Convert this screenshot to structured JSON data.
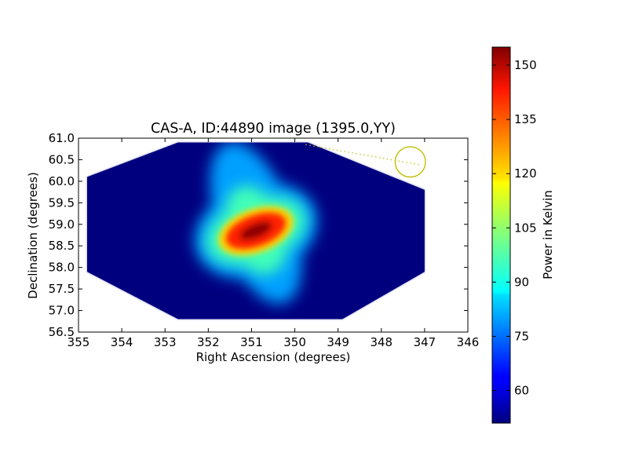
{
  "chart_data": {
    "type": "heatmap",
    "title": "CAS-A, ID:44890 image (1395.0,YY)",
    "xlabel": "Right Ascension (degrees)",
    "ylabel": "Declination (degrees)",
    "xlim": [
      355,
      346
    ],
    "ylim": [
      56.5,
      61.0
    ],
    "xticks": [
      355,
      354,
      353,
      352,
      351,
      350,
      349,
      348,
      347,
      346
    ],
    "xtick_labels": [
      "355",
      "354",
      "353",
      "352",
      "351",
      "350",
      "349",
      "348",
      "347",
      "346"
    ],
    "yticks": [
      56.5,
      57.0,
      57.5,
      58.0,
      58.5,
      59.0,
      59.5,
      60.0,
      60.5,
      61.0
    ],
    "ytick_labels": [
      "56.5",
      "57.0",
      "57.5",
      "58.0",
      "58.5",
      "59.0",
      "59.5",
      "60.0",
      "60.5",
      "61.0"
    ],
    "colormap": "jet",
    "colorbar": {
      "label": "Power in Kelvin",
      "range": [
        51,
        155
      ],
      "ticks": [
        60,
        75,
        90,
        105,
        120,
        135,
        150
      ],
      "tick_labels": [
        "60",
        "75",
        "90",
        "105",
        "120",
        "135",
        "150"
      ]
    },
    "background_value": 51,
    "peak": {
      "ra": 350.9,
      "dec": 58.85,
      "value": 155
    },
    "footprint": [
      [
        354.8,
        60.1
      ],
      [
        352.7,
        60.9
      ],
      [
        349.7,
        60.9
      ],
      [
        347.0,
        59.8
      ],
      [
        347.0,
        57.9
      ],
      [
        348.9,
        56.8
      ],
      [
        352.7,
        56.8
      ],
      [
        354.8,
        57.9
      ]
    ],
    "annotations": [
      {
        "type": "circle",
        "ra": 347.33,
        "dec": 60.45,
        "radius_deg": 0.35,
        "color": "#bfbf00"
      },
      {
        "type": "dotted-line",
        "points": [
          [
            349.75,
            60.85
          ],
          [
            347.1,
            60.38
          ]
        ],
        "color": "#bfbf00"
      }
    ]
  }
}
